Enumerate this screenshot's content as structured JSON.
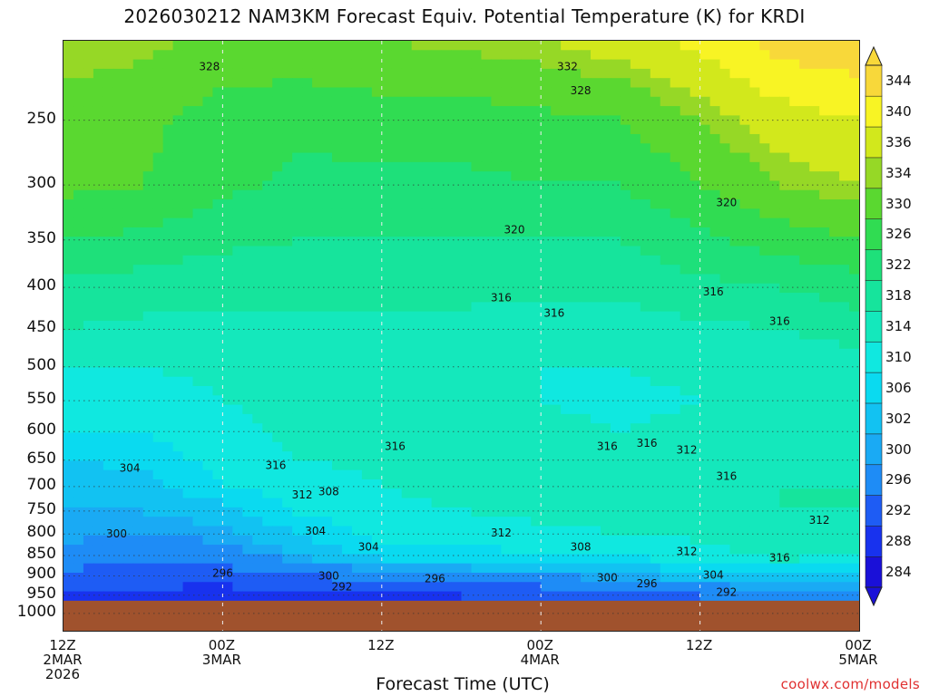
{
  "title": "2026030212 NAM3KM Forecast Equiv. Potential Temperature (K) for KRDI",
  "credit": "coolwx.com/models",
  "chart_data": {
    "type": "heatmap",
    "title": "2026030212 NAM3KM Forecast Equiv. Potential Temperature (K) for KRDI",
    "xlabel": "Forecast Time (UTC)",
    "ylabel": "",
    "y_scale": "log-pressure",
    "y_ticks": [
      250,
      300,
      350,
      400,
      450,
      500,
      550,
      600,
      650,
      700,
      750,
      800,
      850,
      900,
      950,
      1000
    ],
    "x_ticks": [
      {
        "l1": "12Z",
        "l2": "2MAR",
        "l3": "2026"
      },
      {
        "l1": "00Z",
        "l2": "3MAR",
        "l3": ""
      },
      {
        "l1": "12Z",
        "l2": "",
        "l3": ""
      },
      {
        "l1": "00Z",
        "l2": "4MAR",
        "l3": ""
      },
      {
        "l1": "12Z",
        "l2": "",
        "l3": ""
      },
      {
        "l1": "00Z",
        "l2": "5MAR",
        "l3": ""
      }
    ],
    "x_range_hours": [
      0,
      60
    ],
    "colorbar_levels": [
      284,
      288,
      292,
      296,
      300,
      302,
      306,
      310,
      314,
      318,
      322,
      326,
      330,
      334,
      336,
      340,
      344
    ],
    "colorbar_colors": [
      "#1a10d8",
      "#1832ee",
      "#1e5cf4",
      "#1e8cf6",
      "#1aaaf4",
      "#12c2f2",
      "#0adaf0",
      "#10e8e0",
      "#14e8bc",
      "#16e49c",
      "#1ee07a",
      "#30dc52",
      "#5ad830",
      "#96d826",
      "#d2e81c",
      "#f8f424",
      "#f8d83a"
    ],
    "ground_color": "#a0522d",
    "ground_level_hpa": 965,
    "profile_levels_hpa": [
      200,
      250,
      300,
      350,
      400,
      450,
      500,
      550,
      600,
      650,
      700,
      750,
      800,
      850,
      900,
      950
    ],
    "profiles": [
      {
        "hour": 0,
        "theta_e": [
          336,
          332,
          331,
          326,
          321,
          318,
          314,
          312,
          310,
          306,
          304,
          302,
          301,
          298,
          295,
          292
        ]
      },
      {
        "hour": 6,
        "theta_e": [
          335,
          331,
          330,
          325,
          320,
          317,
          314,
          312,
          310,
          307,
          304,
          302,
          300,
          298,
          294,
          291
        ]
      },
      {
        "hour": 12,
        "theta_e": [
          333,
          328,
          327,
          323,
          319,
          317,
          315,
          314,
          313,
          312,
          310,
          304,
          301,
          298,
          294,
          290
        ]
      },
      {
        "hour": 18,
        "theta_e": [
          333,
          327,
          325,
          322,
          319,
          317,
          316,
          315,
          315,
          314,
          312,
          311,
          306,
          302,
          296,
          291
        ]
      },
      {
        "hour": 24,
        "theta_e": [
          334,
          328,
          325,
          322,
          319,
          317,
          316,
          316,
          316,
          315,
          314,
          313,
          312,
          308,
          297,
          291
        ]
      },
      {
        "hour": 30,
        "theta_e": [
          335,
          328,
          325,
          322,
          319,
          317,
          316,
          316,
          316,
          316,
          315,
          314,
          312,
          308,
          298,
          292
        ]
      },
      {
        "hour": 36,
        "theta_e": [
          336,
          329,
          326,
          322,
          319,
          316,
          314,
          314,
          315,
          316,
          316,
          315,
          313,
          310,
          300,
          293
        ]
      },
      {
        "hour": 42,
        "theta_e": [
          338,
          330,
          326,
          322,
          319,
          316,
          314,
          313,
          314,
          315,
          316,
          316,
          314,
          311,
          301,
          294
        ]
      },
      {
        "hour": 48,
        "theta_e": [
          341,
          334,
          330,
          325,
          321,
          317,
          315,
          314,
          315,
          316,
          317,
          316,
          315,
          312,
          304,
          296
        ]
      },
      {
        "hour": 54,
        "theta_e": [
          346,
          338,
          334,
          328,
          322,
          318,
          315,
          314,
          315,
          316,
          318,
          318,
          317,
          316,
          306,
          297
        ]
      },
      {
        "hour": 60,
        "theta_e": [
          347,
          340,
          336,
          330,
          324,
          320,
          316,
          314,
          315,
          316,
          318,
          318,
          316,
          314,
          305,
          296
        ]
      }
    ],
    "contour_labels": [
      {
        "value": "328",
        "hour": 11,
        "p": 215
      },
      {
        "value": "332",
        "hour": 38,
        "p": 215
      },
      {
        "value": "328",
        "hour": 39,
        "p": 230
      },
      {
        "value": "320",
        "hour": 50,
        "p": 315
      },
      {
        "value": "320",
        "hour": 34,
        "p": 340
      },
      {
        "value": "316",
        "hour": 33,
        "p": 412
      },
      {
        "value": "316",
        "hour": 37,
        "p": 430
      },
      {
        "value": "316",
        "hour": 49,
        "p": 405
      },
      {
        "value": "316",
        "hour": 54,
        "p": 440
      },
      {
        "value": "304",
        "hour": 5,
        "p": 665
      },
      {
        "value": "316",
        "hour": 16,
        "p": 660
      },
      {
        "value": "316",
        "hour": 25,
        "p": 625
      },
      {
        "value": "316",
        "hour": 41,
        "p": 625
      },
      {
        "value": "316",
        "hour": 44,
        "p": 620
      },
      {
        "value": "312",
        "hour": 47,
        "p": 632
      },
      {
        "value": "316",
        "hour": 50,
        "p": 680
      },
      {
        "value": "312",
        "hour": 18,
        "p": 717
      },
      {
        "value": "308",
        "hour": 20,
        "p": 710
      },
      {
        "value": "312",
        "hour": 33,
        "p": 797
      },
      {
        "value": "312",
        "hour": 57,
        "p": 770
      },
      {
        "value": "304",
        "hour": 19,
        "p": 793
      },
      {
        "value": "304",
        "hour": 23,
        "p": 830
      },
      {
        "value": "308",
        "hour": 39,
        "p": 830
      },
      {
        "value": "312",
        "hour": 47,
        "p": 840
      },
      {
        "value": "316",
        "hour": 54,
        "p": 855
      },
      {
        "value": "300",
        "hour": 4,
        "p": 800
      },
      {
        "value": "296",
        "hour": 12,
        "p": 893
      },
      {
        "value": "300",
        "hour": 20,
        "p": 900
      },
      {
        "value": "296",
        "hour": 28,
        "p": 907
      },
      {
        "value": "300",
        "hour": 41,
        "p": 905
      },
      {
        "value": "296",
        "hour": 44,
        "p": 920
      },
      {
        "value": "304",
        "hour": 49,
        "p": 898
      },
      {
        "value": "292",
        "hour": 21,
        "p": 928
      },
      {
        "value": "292",
        "hour": 50,
        "p": 942
      }
    ]
  }
}
